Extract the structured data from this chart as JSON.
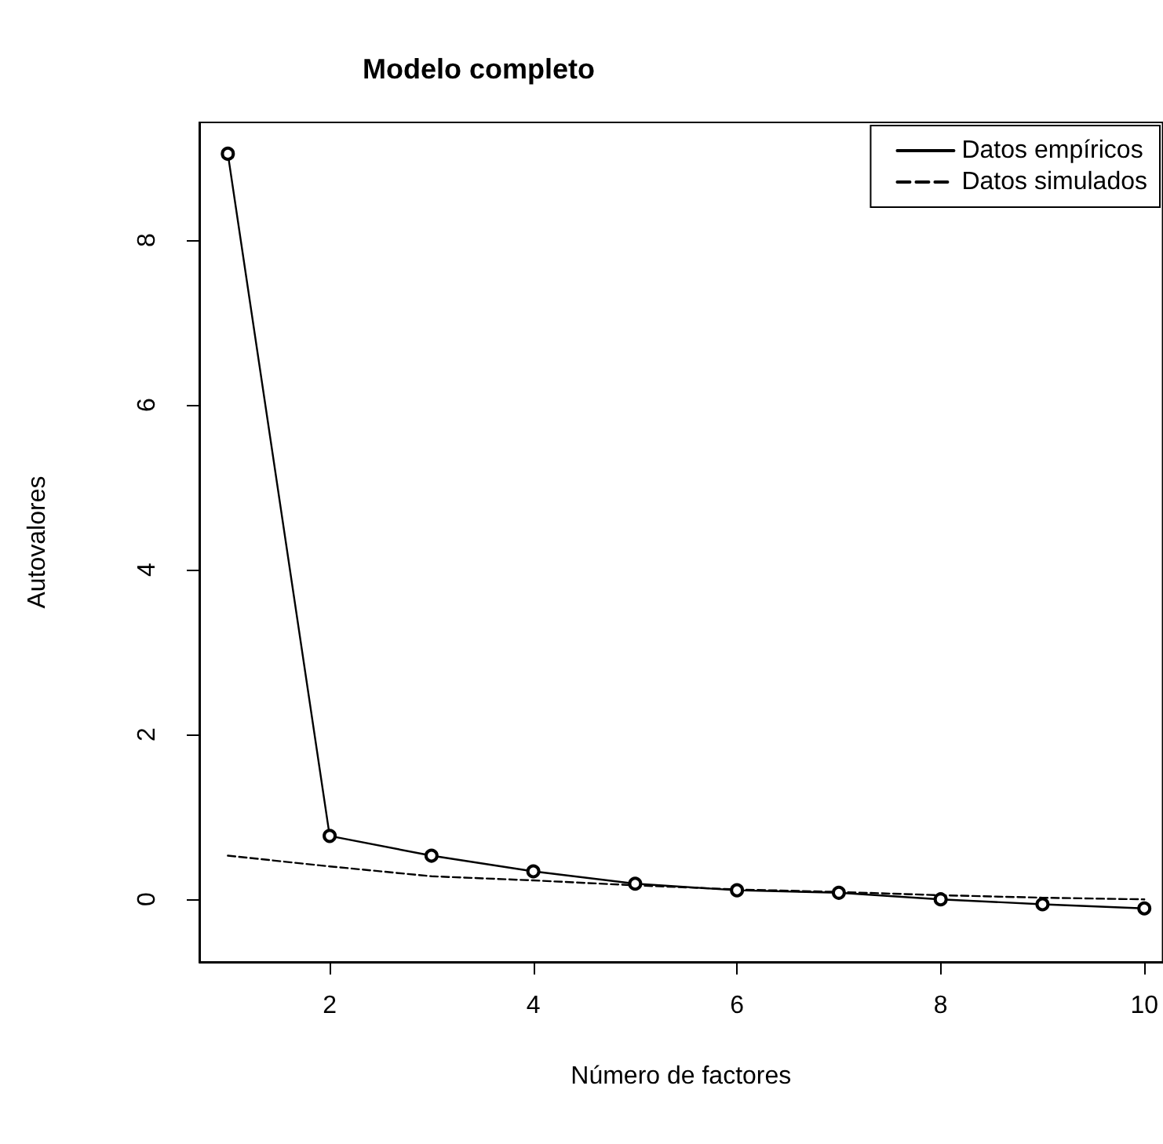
{
  "chart_data": {
    "type": "line",
    "title": "Modelo completo",
    "xlabel": "Número de factores",
    "ylabel": "Autovalores",
    "x": [
      1,
      2,
      3,
      4,
      5,
      6,
      7,
      8,
      9,
      10
    ],
    "series": [
      {
        "name": "Datos empíricos",
        "color": "#000000",
        "marker": "circle",
        "line_style": "solid",
        "values": [
          9.05,
          0.77,
          0.53,
          0.34,
          0.19,
          0.11,
          0.08,
          0.0,
          -0.06,
          -0.11
        ]
      },
      {
        "name": "Datos simulados",
        "color": "#000000",
        "marker": "none",
        "line_style": "dashed",
        "values": [
          0.53,
          0.4,
          0.28,
          0.23,
          0.17,
          0.12,
          0.09,
          0.05,
          0.02,
          0.0
        ]
      }
    ],
    "xlim": [
      0.72,
      10.18
    ],
    "xticks": [
      2,
      4,
      6,
      8,
      10
    ],
    "ylim": [
      -0.76,
      9.43
    ],
    "yticks": [
      0,
      2,
      4,
      6,
      8
    ],
    "grid": false,
    "legend": "top right"
  }
}
